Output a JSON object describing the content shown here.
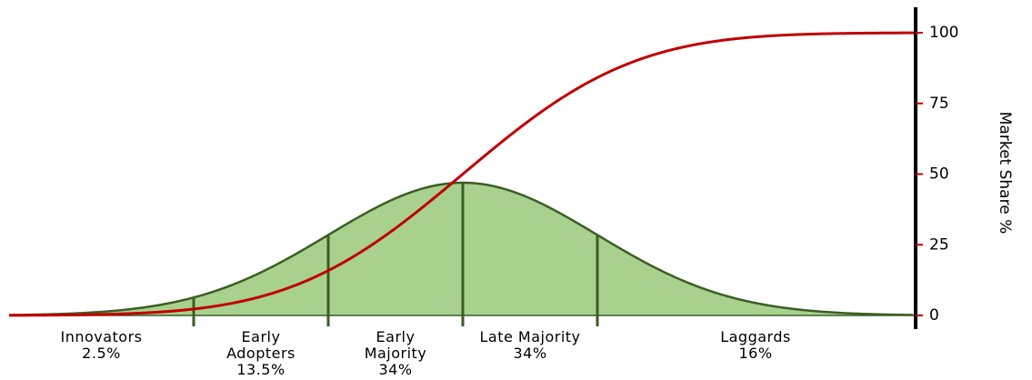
{
  "chart_data": {
    "type": "diffusion",
    "categories": [
      "Innovators",
      "Early Adopters",
      "Early Majority",
      "Late Majority",
      "Laggards"
    ],
    "values": [
      2.5,
      13.5,
      34,
      34,
      16
    ],
    "value_labels": [
      "2.5%",
      "13.5%",
      "34%",
      "34%",
      "16%"
    ],
    "y_label": "Market Share %",
    "ylim": [
      0,
      100
    ],
    "yticks": [
      0,
      25,
      50,
      75,
      100
    ],
    "fill_color": "#a9d18e",
    "edge_color": "#3b5e24",
    "curve_color": "#c00000"
  }
}
